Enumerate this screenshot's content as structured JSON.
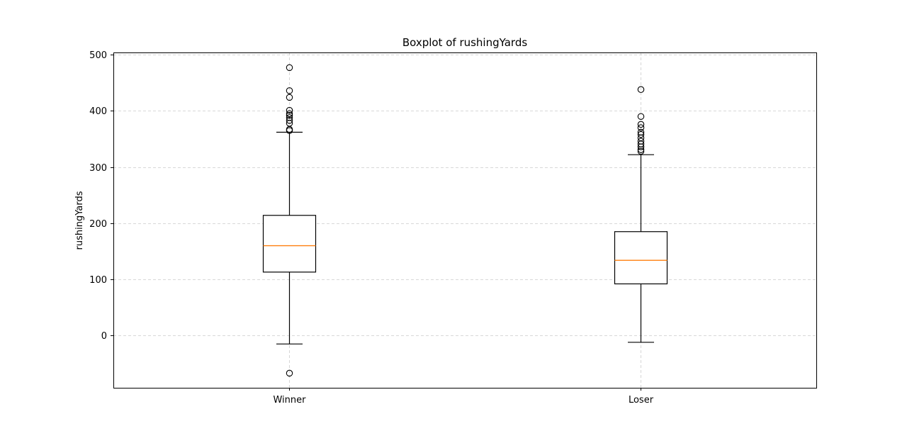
{
  "chart_data": {
    "type": "boxplot",
    "title": "Boxplot of rushingYards",
    "xlabel": "",
    "ylabel": "rushingYards",
    "ylim": [
      -93,
      504
    ],
    "yticks": [
      0,
      100,
      200,
      300,
      400,
      500
    ],
    "grid": true,
    "categories": [
      "Winner",
      "Loser"
    ],
    "boxes": [
      {
        "whisker_low": -15,
        "q1": 113,
        "median": 160,
        "q3": 214,
        "whisker_high": 362,
        "outliers": [
          -67,
          365,
          367,
          378,
          383,
          388,
          392,
          395,
          401,
          424,
          436,
          477
        ]
      },
      {
        "whisker_low": -12,
        "q1": 92,
        "median": 134,
        "q3": 185,
        "whisker_high": 322,
        "outliers": [
          328,
          331,
          336,
          341,
          346,
          352,
          358,
          362,
          370,
          376,
          390,
          438
        ]
      }
    ],
    "colors": {
      "box": "#000000",
      "median": "#ff7f0e",
      "grid": "#cccccc"
    }
  }
}
